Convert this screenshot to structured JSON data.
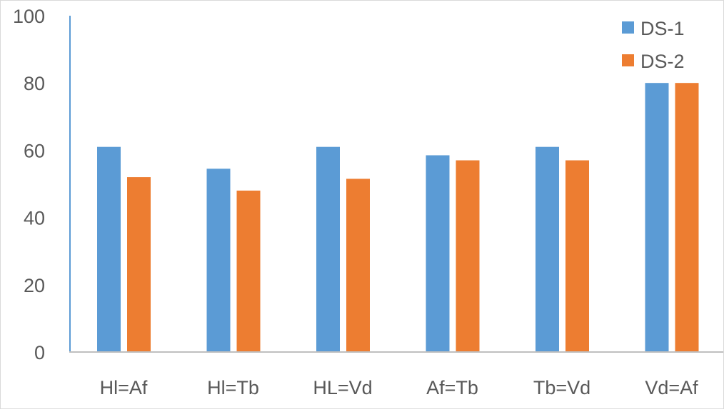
{
  "chart_data": {
    "type": "bar",
    "categories": [
      "Hl=Af",
      "Hl=Tb",
      "HL=Vd",
      "Af=Tb",
      "Tb=Vd",
      "Vd=Af"
    ],
    "series": [
      {
        "name": "DS-1",
        "values": [
          61,
          54.5,
          61,
          58.5,
          61,
          80
        ]
      },
      {
        "name": "DS-2",
        "values": [
          52,
          48,
          51.5,
          57,
          57,
          80
        ]
      }
    ],
    "y_ticks": [
      "0",
      "20",
      "40",
      "60",
      "80",
      "100"
    ],
    "ylim": [
      0,
      100
    ],
    "grid": false,
    "legend_position": "top-right",
    "colors": {
      "DS-1": "#5b9bd5",
      "DS-2": "#ed7d31",
      "axis": "#5b9bd5",
      "text": "#595959"
    }
  }
}
